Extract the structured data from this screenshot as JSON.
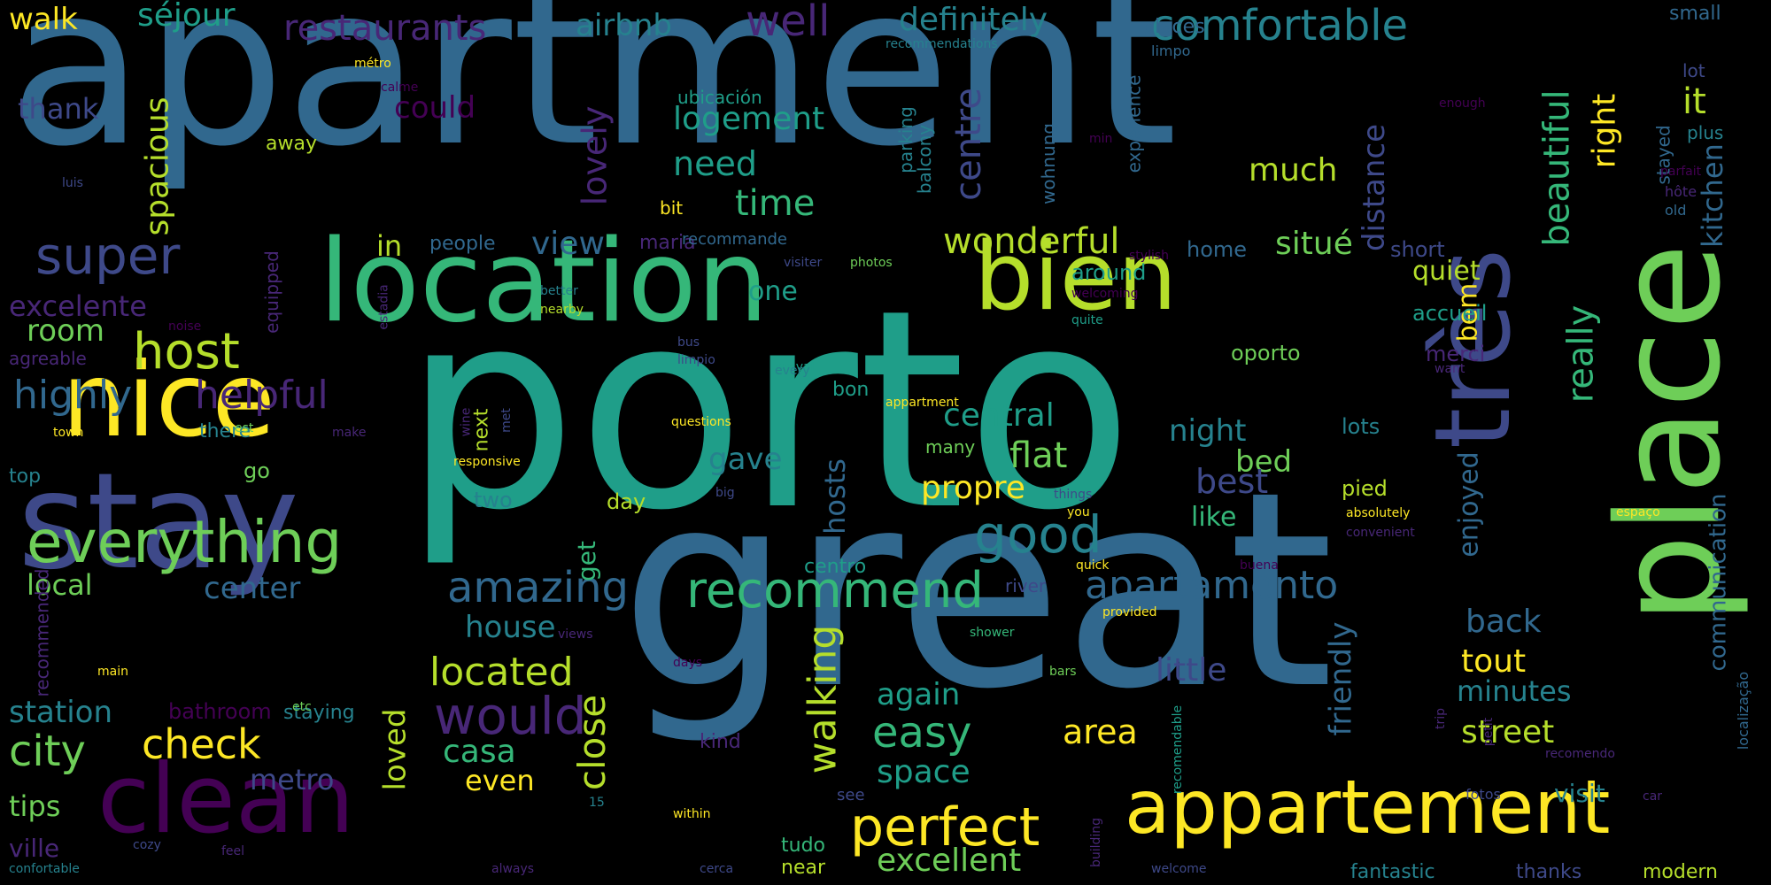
{
  "palette": [
    "#440154",
    "#482777",
    "#3e4989",
    "#31688e",
    "#26828e",
    "#1f9e89",
    "#35b779",
    "#6ece58",
    "#b5de2b",
    "#fde725"
  ],
  "words": [
    {
      "text": "apartment",
      "color": "#31688e"
    },
    {
      "text": "porto",
      "color": "#1f9e89"
    },
    {
      "text": "great",
      "color": "#31688e"
    },
    {
      "text": "stay",
      "color": "#3e4989"
    },
    {
      "text": "location",
      "color": "#35b779"
    },
    {
      "text": "clean",
      "color": "#440154"
    },
    {
      "text": "place",
      "color": "#6ece58"
    },
    {
      "text": "très",
      "color": "#3e4989"
    },
    {
      "text": "nice",
      "color": "#fde725"
    },
    {
      "text": "bien",
      "color": "#b5de2b"
    },
    {
      "text": "appartement",
      "color": "#fde725"
    },
    {
      "text": "everything",
      "color": "#6ece58"
    },
    {
      "text": "recommend",
      "color": "#35b779"
    },
    {
      "text": "host",
      "color": "#b5de2b"
    },
    {
      "text": "super",
      "color": "#3e4989"
    },
    {
      "text": "apartamento",
      "color": "#31688e"
    },
    {
      "text": "perfect",
      "color": "#fde725"
    },
    {
      "text": "good",
      "color": "#26828e"
    },
    {
      "text": "would",
      "color": "#482777"
    },
    {
      "text": "amazing",
      "color": "#31688e"
    },
    {
      "text": "restaurants",
      "color": "#482777"
    },
    {
      "text": "comfortable",
      "color": "#26828e"
    },
    {
      "text": "definitely",
      "color": "#26828e"
    },
    {
      "text": "wonderful",
      "color": "#b5de2b"
    },
    {
      "text": "helpful",
      "color": "#482777"
    },
    {
      "text": "highly",
      "color": "#31688e"
    },
    {
      "text": "check",
      "color": "#fde725"
    },
    {
      "text": "city",
      "color": "#6ece58"
    },
    {
      "text": "located",
      "color": "#b5de2b"
    },
    {
      "text": "walking",
      "color": "#b5de2b"
    },
    {
      "text": "close",
      "color": "#b5de2b"
    },
    {
      "text": "excellent",
      "color": "#6ece58"
    },
    {
      "text": "easy",
      "color": "#35b779"
    },
    {
      "text": "area",
      "color": "#fde725"
    },
    {
      "text": "walk",
      "color": "#fde725"
    },
    {
      "text": "séjour",
      "color": "#1f9e89"
    },
    {
      "text": "airbnb",
      "color": "#26828e"
    },
    {
      "text": "well",
      "color": "#482777"
    },
    {
      "text": "spacious",
      "color": "#b5de2b"
    },
    {
      "text": "lovely",
      "color": "#482777"
    },
    {
      "text": "centre",
      "color": "#3e4989"
    },
    {
      "text": "beautiful",
      "color": "#35b779"
    },
    {
      "text": "right",
      "color": "#fde725"
    },
    {
      "text": "it",
      "color": "#b5de2b"
    },
    {
      "text": "kitchen",
      "color": "#31688e"
    },
    {
      "text": "logement",
      "color": "#1f9e89"
    },
    {
      "text": "could",
      "color": "#440154"
    },
    {
      "text": "thank",
      "color": "#3e4989"
    },
    {
      "text": "need",
      "color": "#1f9e89"
    },
    {
      "text": "time",
      "color": "#35b779"
    },
    {
      "text": "view",
      "color": "#31688e"
    },
    {
      "text": "much",
      "color": "#b5de2b"
    },
    {
      "text": "distance",
      "color": "#3e4989"
    },
    {
      "text": "situé",
      "color": "#6ece58"
    },
    {
      "text": "quiet",
      "color": "#b5de2b"
    },
    {
      "text": "bem",
      "color": "#fde725"
    },
    {
      "text": "really",
      "color": "#35b779"
    },
    {
      "text": "excelente",
      "color": "#482777"
    },
    {
      "text": "room",
      "color": "#6ece58"
    },
    {
      "text": "one",
      "color": "#1f9e89"
    },
    {
      "text": "in",
      "color": "#b5de2b"
    },
    {
      "text": "central",
      "color": "#1f9e89"
    },
    {
      "text": "flat",
      "color": "#6ece58"
    },
    {
      "text": "night",
      "color": "#26828e"
    },
    {
      "text": "bed",
      "color": "#6ece58"
    },
    {
      "text": "best",
      "color": "#3e4989"
    },
    {
      "text": "propre",
      "color": "#fde725"
    },
    {
      "text": "gave",
      "color": "#26828e"
    },
    {
      "text": "like",
      "color": "#35b779"
    },
    {
      "text": "hosts",
      "color": "#31688e"
    },
    {
      "text": "enjoyed",
      "color": "#31688e"
    },
    {
      "text": "communication",
      "color": "#31688e"
    },
    {
      "text": "local",
      "color": "#6ece58"
    },
    {
      "text": "center",
      "color": "#31688e"
    },
    {
      "text": "house",
      "color": "#26828e"
    },
    {
      "text": "get",
      "color": "#35b779"
    },
    {
      "text": "again",
      "color": "#1f9e89"
    },
    {
      "text": "loved",
      "color": "#b5de2b"
    },
    {
      "text": "casa",
      "color": "#35b779"
    },
    {
      "text": "metro",
      "color": "#3e4989"
    },
    {
      "text": "even",
      "color": "#fde725"
    },
    {
      "text": "space",
      "color": "#1f9e89"
    },
    {
      "text": "back",
      "color": "#31688e"
    },
    {
      "text": "little",
      "color": "#3e4989"
    },
    {
      "text": "friendly",
      "color": "#31688e"
    },
    {
      "text": "tout",
      "color": "#fde725"
    },
    {
      "text": "minutes",
      "color": "#26828e"
    },
    {
      "text": "street",
      "color": "#b5de2b"
    },
    {
      "text": "station",
      "color": "#26828e"
    },
    {
      "text": "tips",
      "color": "#6ece58"
    },
    {
      "text": "ville",
      "color": "#482777"
    },
    {
      "text": "bathroom",
      "color": "#440154"
    },
    {
      "text": "staying",
      "color": "#26828e"
    },
    {
      "text": "visit",
      "color": "#26828e"
    },
    {
      "text": "fantastic",
      "color": "#26828e"
    },
    {
      "text": "thanks",
      "color": "#3e4989"
    },
    {
      "text": "modern",
      "color": "#b5de2b"
    },
    {
      "text": "tudo",
      "color": "#35b779"
    },
    {
      "text": "near",
      "color": "#b5de2b"
    },
    {
      "text": "kind",
      "color": "#482777"
    },
    {
      "text": "see",
      "color": "#3e4989"
    },
    {
      "text": "river",
      "color": "#3e4989"
    },
    {
      "text": "centro",
      "color": "#1f9e89"
    },
    {
      "text": "ubicación",
      "color": "#1f9e89"
    },
    {
      "text": "parking",
      "color": "#26828e"
    },
    {
      "text": "balcony",
      "color": "#26828e"
    },
    {
      "text": "wohnung",
      "color": "#31688e"
    },
    {
      "text": "experience",
      "color": "#31688e"
    },
    {
      "text": "places",
      "color": "#31688e"
    },
    {
      "text": "stayed",
      "color": "#31688e"
    },
    {
      "text": "people",
      "color": "#31688e"
    },
    {
      "text": "maria",
      "color": "#482777"
    },
    {
      "text": "home",
      "color": "#31688e"
    },
    {
      "text": "around",
      "color": "#1f9e89"
    },
    {
      "text": "short",
      "color": "#3e4989"
    },
    {
      "text": "accueil",
      "color": "#1f9e89"
    },
    {
      "text": "merci",
      "color": "#482777"
    },
    {
      "text": "oporto",
      "color": "#6ece58"
    },
    {
      "text": "lots",
      "color": "#26828e"
    },
    {
      "text": "pied",
      "color": "#b5de2b"
    },
    {
      "text": "two",
      "color": "#26828e"
    },
    {
      "text": "next",
      "color": "#b5de2b"
    },
    {
      "text": "there",
      "color": "#26828e"
    },
    {
      "text": "go",
      "color": "#6ece58"
    },
    {
      "text": "top",
      "color": "#26828e"
    },
    {
      "text": "many",
      "color": "#6ece58"
    },
    {
      "text": "day",
      "color": "#b5de2b"
    },
    {
      "text": "bon",
      "color": "#1f9e89"
    },
    {
      "text": "small",
      "color": "#31688e"
    },
    {
      "text": "lot",
      "color": "#3e4989"
    },
    {
      "text": "plus",
      "color": "#26828e"
    },
    {
      "text": "bit",
      "color": "#fde725"
    },
    {
      "text": "away",
      "color": "#b5de2b"
    },
    {
      "text": "agreable",
      "color": "#482777"
    },
    {
      "text": "equipped",
      "color": "#482777"
    },
    {
      "text": "recommended",
      "color": "#482777"
    },
    {
      "text": "recommande",
      "color": "#31688e"
    },
    {
      "text": "localização",
      "color": "#31688e"
    },
    {
      "text": "hôte",
      "color": "#482777"
    },
    {
      "text": "old",
      "color": "#31688e"
    },
    {
      "text": "parfait",
      "color": "#440154"
    },
    {
      "text": "enough",
      "color": "#440154"
    },
    {
      "text": "limpo",
      "color": "#31688e"
    },
    {
      "text": "min",
      "color": "#440154"
    },
    {
      "text": "luis",
      "color": "#3e4989"
    },
    {
      "text": "calme",
      "color": "#440154"
    },
    {
      "text": "métro",
      "color": "#fde725"
    },
    {
      "text": "recommendations",
      "color": "#26828e"
    },
    {
      "text": "better",
      "color": "#26828e"
    },
    {
      "text": "nearby",
      "color": "#b5de2b"
    },
    {
      "text": "estadia",
      "color": "#482777"
    },
    {
      "text": "visiter",
      "color": "#3e4989"
    },
    {
      "text": "photos",
      "color": "#6ece58"
    },
    {
      "text": "stylish",
      "color": "#440154"
    },
    {
      "text": "welcoming",
      "color": "#440154"
    },
    {
      "text": "quite",
      "color": "#1f9e89"
    },
    {
      "text": "noise",
      "color": "#440154"
    },
    {
      "text": "bus",
      "color": "#3e4989"
    },
    {
      "text": "limpio",
      "color": "#3e4989"
    },
    {
      "text": "arrival",
      "color": "#1f9e89"
    },
    {
      "text": "want",
      "color": "#482777"
    },
    {
      "text": "every",
      "color": "#26828e"
    },
    {
      "text": "appartment",
      "color": "#fde725"
    },
    {
      "text": "town",
      "color": "#fde725"
    },
    {
      "text": "make",
      "color": "#482777"
    },
    {
      "text": "wine",
      "color": "#482777"
    },
    {
      "text": "met",
      "color": "#3e4989"
    },
    {
      "text": "responsive",
      "color": "#fde725"
    },
    {
      "text": "questions",
      "color": "#fde725"
    },
    {
      "text": "big",
      "color": "#3e4989"
    },
    {
      "text": "est",
      "color": "#6ece58"
    },
    {
      "text": "things",
      "color": "#3e4989"
    },
    {
      "text": "you",
      "color": "#fde725"
    },
    {
      "text": "absolutely",
      "color": "#fde725"
    },
    {
      "text": "espaço",
      "color": "#fde725"
    },
    {
      "text": "convenient",
      "color": "#482777"
    },
    {
      "text": "quick",
      "color": "#fde725"
    },
    {
      "text": "buena",
      "color": "#440154"
    },
    {
      "text": "provided",
      "color": "#fde725"
    },
    {
      "text": "shower",
      "color": "#35b779"
    },
    {
      "text": "views",
      "color": "#482777"
    },
    {
      "text": "days",
      "color": "#440154"
    },
    {
      "text": "bars",
      "color": "#6ece58"
    },
    {
      "text": "main",
      "color": "#fde725"
    },
    {
      "text": "etc",
      "color": "#6ece58"
    },
    {
      "text": "15",
      "color": "#26828e"
    },
    {
      "text": "within",
      "color": "#fde725"
    },
    {
      "text": "cozy",
      "color": "#3e4989"
    },
    {
      "text": "feel",
      "color": "#482777"
    },
    {
      "text": "confortable",
      "color": "#26828e"
    },
    {
      "text": "always",
      "color": "#482777"
    },
    {
      "text": "cerca",
      "color": "#3e4989"
    },
    {
      "text": "recomendable",
      "color": "#1f9e89"
    },
    {
      "text": "building",
      "color": "#482777"
    },
    {
      "text": "welcome",
      "color": "#3e4989"
    },
    {
      "text": "trip",
      "color": "#482777"
    },
    {
      "text": "petit",
      "color": "#482777"
    },
    {
      "text": "recomendo",
      "color": "#482777"
    },
    {
      "text": "fotos",
      "color": "#3e4989"
    },
    {
      "text": "car",
      "color": "#482777"
    }
  ]
}
